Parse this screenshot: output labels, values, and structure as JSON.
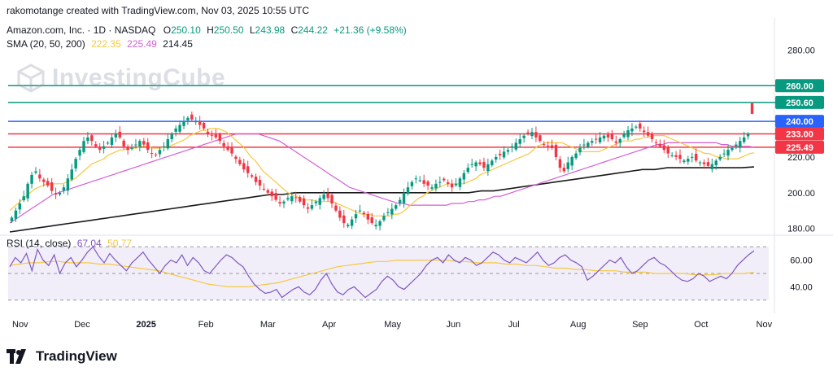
{
  "header": {
    "attribution": "rakomotange created with TradingView.com, Nov 03, 2025 10:55 UTC",
    "symbol": "Amazon.com, Inc. · 1D · NASDAQ",
    "o_label": "O",
    "o_value": "250.10",
    "h_label": "H",
    "h_value": "250.50",
    "l_label": "L",
    "l_value": "243.98",
    "c_label": "C",
    "c_value": "244.22",
    "change": "+21.36 (+9.58%)",
    "sma_label": "SMA (20, 50, 200)",
    "sma20": "222.35",
    "sma50": "225.49",
    "sma200": "214.45",
    "rsi_label": "RSI (14, close)",
    "rsi_value": "67.04",
    "rsi_ma": "50.77"
  },
  "watermark": {
    "text": "InvestingCube"
  },
  "platform": {
    "name": "TradingView"
  },
  "colors": {
    "up": "#089981",
    "down": "#f23645",
    "sma20": "#f5c842",
    "sma50": "#d35fd6",
    "sma200": "#1a1a1a",
    "rsi": "#7e57c2",
    "rsi_ma": "#f5c842",
    "line_teal": "#089981",
    "line_blue": "#2962ff",
    "line_red": "#f23645"
  },
  "chart_data": {
    "type": "candlestick",
    "price_axis": {
      "ticks": [
        180,
        200,
        220,
        280
      ],
      "range": [
        178,
        298
      ]
    },
    "rsi_axis": {
      "ticks": [
        40,
        60
      ],
      "range": [
        28,
        72
      ],
      "bands": [
        30,
        50,
        70
      ]
    },
    "time_axis": [
      "Nov",
      "Dec",
      "2025",
      "Feb",
      "Mar",
      "Apr",
      "May",
      "Jun",
      "Jul",
      "Aug",
      "Sep",
      "Oct",
      "Nov"
    ],
    "horizontal_levels": [
      {
        "value": 260.0,
        "label": "260.00",
        "color": "#089981"
      },
      {
        "value": 250.6,
        "label": "250.60",
        "color": "#089981"
      },
      {
        "value": 240.0,
        "label": "240.00",
        "color": "#2962ff"
      },
      {
        "value": 233.0,
        "label": "233.00",
        "color": "#f23645"
      },
      {
        "value": 225.49,
        "label": "225.49",
        "color": "#f23645"
      }
    ],
    "closes": [
      186,
      190,
      194,
      198,
      205,
      210,
      212,
      208,
      206,
      204,
      201,
      199,
      200,
      203,
      208,
      213,
      219,
      224,
      229,
      231,
      229,
      226,
      224,
      226,
      228,
      231,
      233,
      231,
      226,
      224,
      225,
      227,
      229,
      227,
      224,
      222,
      221,
      224,
      226,
      230,
      233,
      236,
      238,
      240,
      242,
      241,
      240,
      238,
      236,
      233,
      232,
      231,
      229,
      226,
      224,
      222,
      219,
      216,
      213,
      211,
      209,
      206,
      204,
      202,
      200,
      198,
      196,
      194,
      195,
      197,
      198,
      197,
      195,
      193,
      191,
      193,
      195,
      197,
      199,
      197,
      194,
      190,
      186,
      183,
      182,
      185,
      188,
      190,
      188,
      185,
      183,
      182,
      184,
      187,
      189,
      191,
      193,
      196,
      200,
      203,
      206,
      208,
      207,
      205,
      204,
      203,
      205,
      206,
      207,
      205,
      203,
      205,
      208,
      211,
      214,
      216,
      217,
      216,
      214,
      216,
      218,
      220,
      221,
      223,
      224,
      226,
      228,
      230,
      232,
      233,
      234,
      231,
      229,
      227,
      226,
      225,
      220,
      214,
      212,
      217,
      220,
      222,
      225,
      227,
      228,
      229,
      230,
      231,
      232,
      231,
      230,
      228,
      230,
      233,
      235,
      236,
      237,
      236,
      234,
      232,
      230,
      228,
      226,
      224,
      222,
      221,
      220,
      219,
      218,
      219,
      220,
      218,
      217,
      216,
      215,
      216,
      218,
      220,
      222,
      224,
      225,
      227,
      229,
      231,
      233,
      244.22
    ],
    "sma20": [
      190,
      192,
      194,
      196,
      198,
      200,
      202,
      203,
      204,
      205,
      205,
      205,
      205,
      205,
      206,
      207,
      208,
      210,
      212,
      214,
      216,
      217,
      218,
      219,
      221,
      222,
      223,
      224,
      224,
      225,
      225,
      225,
      226,
      226,
      226,
      225,
      225,
      225,
      226,
      226,
      227,
      228,
      229,
      230,
      232,
      233,
      234,
      235,
      235,
      236,
      236,
      236,
      235,
      234,
      232,
      230,
      228,
      226,
      223,
      220,
      218,
      215,
      212,
      210,
      208,
      206,
      204,
      202,
      200,
      199,
      198,
      197,
      196,
      196,
      196,
      195,
      195,
      195,
      195,
      195,
      194,
      193,
      192,
      191,
      190,
      189,
      188,
      188,
      188,
      187,
      187,
      187,
      187,
      187,
      188,
      188,
      189,
      191,
      193,
      195,
      197,
      198,
      200,
      201,
      202,
      203,
      204,
      205,
      205,
      205,
      205,
      205,
      206,
      207,
      208,
      210,
      211,
      212,
      213,
      214,
      215,
      216,
      217,
      218,
      219,
      220,
      221,
      222,
      224,
      226,
      227,
      228,
      228,
      228,
      228,
      228,
      227,
      226,
      225,
      224,
      223,
      223,
      223,
      223,
      223,
      224,
      225,
      226,
      227,
      228,
      229,
      229,
      229,
      230,
      230,
      231,
      231,
      232,
      232,
      232,
      232,
      231,
      230,
      229,
      228,
      227,
      226,
      225,
      224,
      223,
      222,
      222,
      221,
      220,
      220,
      219,
      219,
      219,
      219,
      220,
      221,
      222,
      222.35
    ],
    "sma50": [
      183,
      185,
      187,
      189,
      191,
      193,
      195,
      197,
      199,
      200,
      201,
      202,
      203,
      204,
      205,
      206,
      207,
      208,
      209,
      210,
      211,
      212,
      213,
      214,
      215,
      216,
      217,
      218,
      219,
      220,
      221,
      222,
      223,
      224,
      225,
      226,
      227,
      228,
      229,
      230,
      231,
      232,
      233,
      233,
      233,
      233,
      233,
      232,
      231,
      230,
      229,
      227,
      225,
      223,
      221,
      219,
      217,
      215,
      213,
      211,
      209,
      207,
      205,
      203,
      202,
      201,
      200,
      199,
      198,
      197,
      196,
      195,
      194,
      194,
      193,
      193,
      193,
      193,
      193,
      193,
      193,
      193,
      194,
      194,
      194,
      195,
      195,
      196,
      196,
      197,
      198,
      198,
      199,
      200,
      201,
      202,
      203,
      204,
      205,
      206,
      207,
      208,
      209,
      210,
      211,
      212,
      213,
      214,
      215,
      216,
      217,
      218,
      219,
      220,
      221,
      222,
      223,
      224,
      225,
      226,
      227,
      227,
      228,
      228,
      228,
      228,
      228,
      228,
      228,
      228,
      228,
      228,
      227,
      227,
      226,
      226,
      226,
      226,
      225.49
    ],
    "sma200": [
      178,
      179,
      180,
      181,
      182,
      183,
      184,
      185,
      186,
      187,
      188,
      189,
      190,
      191,
      192,
      193,
      194,
      195,
      196,
      197,
      198,
      199,
      199,
      200,
      200,
      200,
      200,
      200,
      200,
      200,
      200,
      200,
      200,
      200,
      200,
      200,
      200,
      200,
      201,
      201,
      202,
      203,
      204,
      205,
      206,
      207,
      208,
      209,
      210,
      211,
      212,
      213,
      213,
      214,
      214,
      214,
      214,
      214,
      214,
      214,
      214.45
    ],
    "rsi": [
      55,
      62,
      58,
      65,
      52,
      68,
      60,
      56,
      64,
      50,
      58,
      62,
      55,
      60,
      66,
      70,
      63,
      58,
      65,
      60,
      56,
      52,
      58,
      62,
      66,
      60,
      55,
      50,
      56,
      60,
      58,
      64,
      56,
      62,
      58,
      52,
      50,
      55,
      60,
      64,
      62,
      58,
      55,
      48,
      42,
      38,
      35,
      36,
      38,
      32,
      35,
      38,
      40,
      36,
      34,
      38,
      45,
      50,
      42,
      36,
      34,
      38,
      40,
      36,
      32,
      35,
      38,
      44,
      48,
      45,
      40,
      38,
      42,
      46,
      50,
      56,
      60,
      62,
      58,
      64,
      60,
      58,
      62,
      60,
      56,
      58,
      62,
      66,
      64,
      60,
      58,
      62,
      60,
      58,
      62,
      66,
      60,
      56,
      58,
      62,
      64,
      60,
      58,
      55,
      45,
      48,
      52,
      56,
      60,
      58,
      62,
      55,
      50,
      52,
      56,
      60,
      62,
      58,
      56,
      52,
      48,
      45,
      44,
      46,
      50,
      48,
      44,
      46,
      48,
      46,
      50,
      56,
      60,
      64,
      67.04
    ],
    "rsi_ma": [
      56,
      57,
      58,
      58,
      59,
      59,
      58,
      58,
      58,
      57,
      57,
      56,
      55,
      54,
      53,
      52,
      50,
      48,
      46,
      44,
      42,
      41,
      40,
      40,
      40,
      41,
      42,
      43,
      45,
      47,
      49,
      51,
      53,
      55,
      56,
      57,
      58,
      59,
      59,
      60,
      60,
      60,
      60,
      60,
      60,
      59,
      59,
      58,
      58,
      58,
      57,
      57,
      56,
      56,
      55,
      54,
      54,
      53,
      53,
      52,
      52,
      52,
      51,
      51,
      51,
      50,
      50,
      50,
      50,
      49,
      49,
      49,
      50,
      50,
      50,
      50.77
    ]
  }
}
